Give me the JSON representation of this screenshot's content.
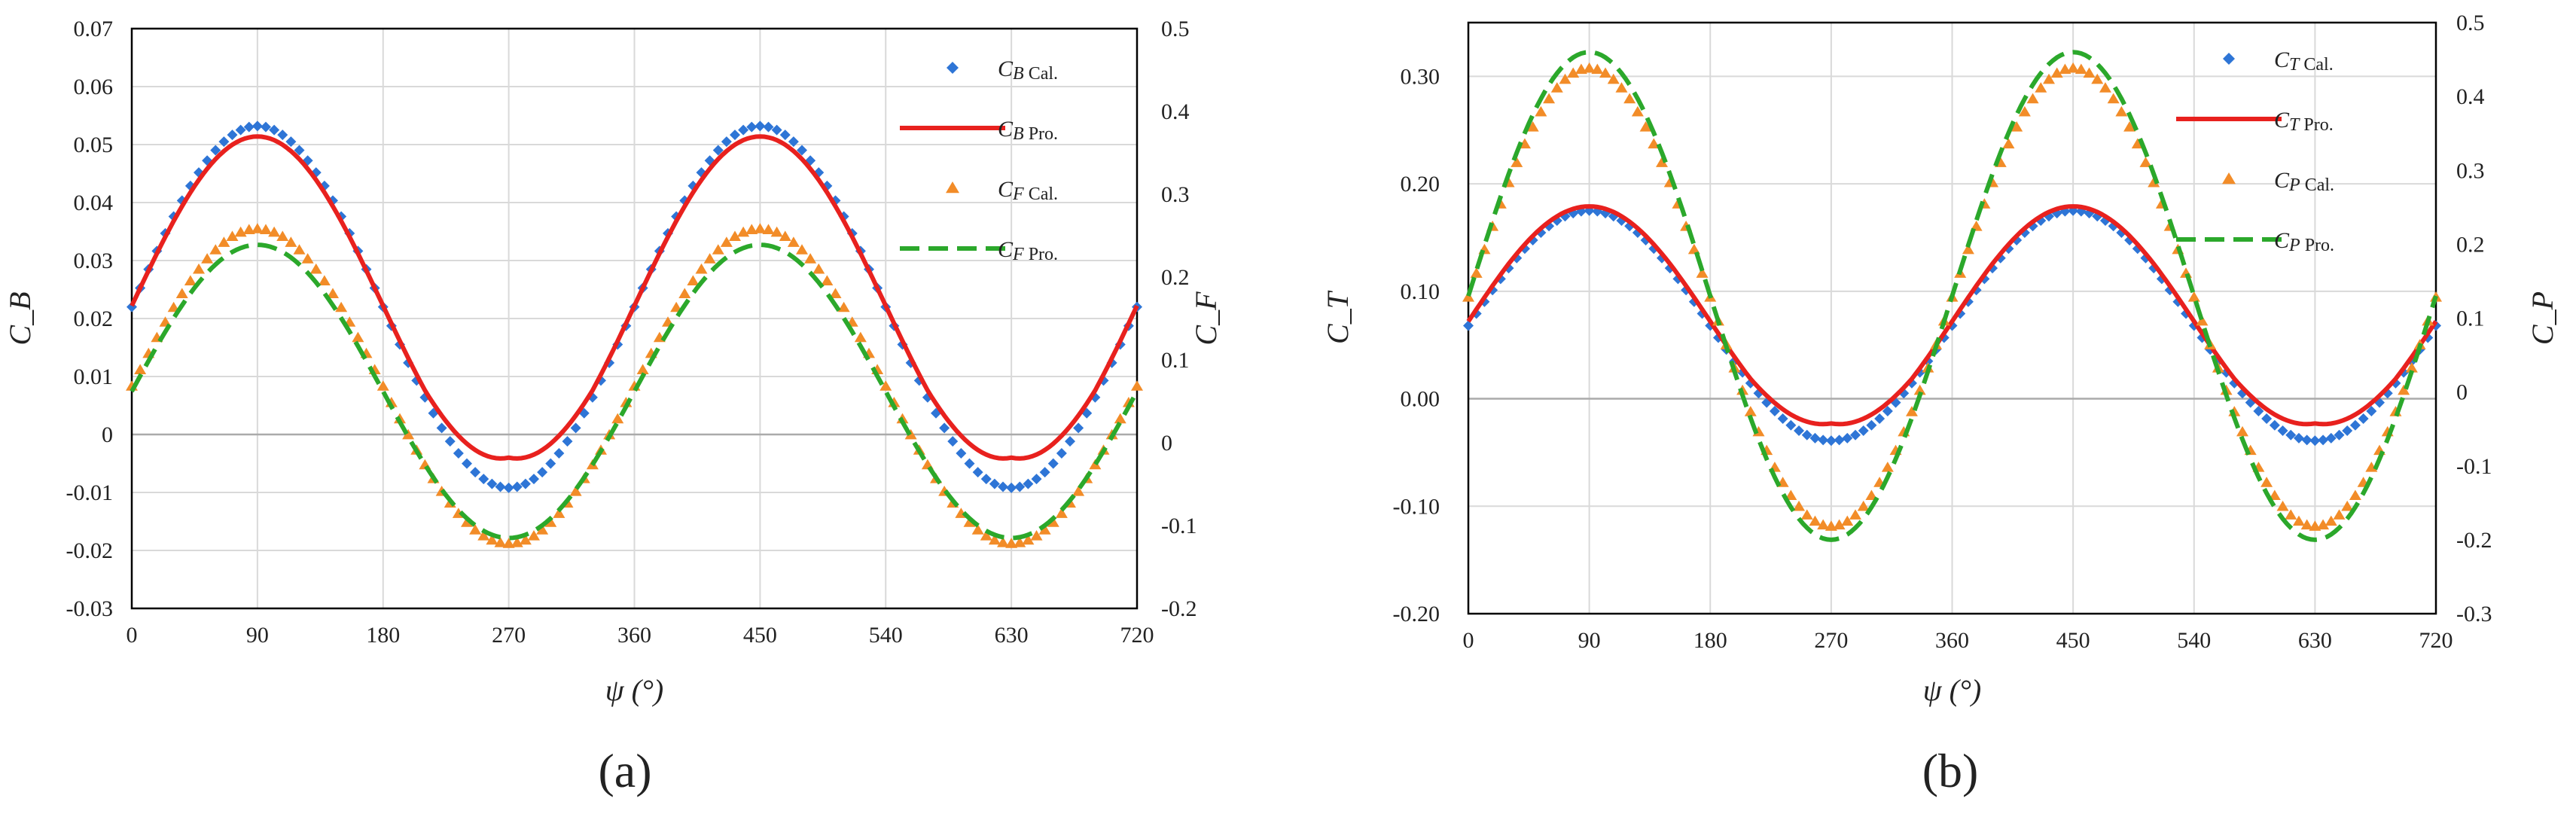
{
  "chart_data": [
    {
      "type": "line",
      "panel_label": "(a)",
      "xlabel": "ψ (°)",
      "ylabel_left": "C_B",
      "ylabel_right": "C_F",
      "x_ticks": [
        "0",
        "90",
        "180",
        "270",
        "360",
        "450",
        "540",
        "630",
        "720"
      ],
      "xlim": [
        0,
        720
      ],
      "ylim_left": [
        -0.03,
        0.07
      ],
      "ylim_right": [
        -0.2,
        0.5
      ],
      "left_ticks": [
        "-0.03",
        "-0.02",
        "-0.01",
        "0",
        "0.01",
        "0.02",
        "0.03",
        "0.04",
        "0.05",
        "0.06",
        "0.07"
      ],
      "right_ticks": [
        "-0.2",
        "-0.1",
        "0",
        "0.1",
        "0.2",
        "0.3",
        "0.4",
        "0.5"
      ],
      "grid": true,
      "legend_position": "top-right",
      "legend": [
        {
          "main": "C",
          "sub": "B",
          "suffix": "Cal.",
          "style": "diamond",
          "color": "#2E75D6"
        },
        {
          "main": "C",
          "sub": "B",
          "suffix": "Pro.",
          "style": "solid",
          "color": "#E8211E"
        },
        {
          "main": "C",
          "sub": "F",
          "suffix": "Cal.",
          "style": "triangle",
          "color": "#F28C28"
        },
        {
          "main": "C",
          "sub": "F",
          "suffix": "Pro.",
          "style": "dashed",
          "color": "#2BA82B"
        }
      ],
      "series": [
        {
          "name": "CB Cal.",
          "axis": "left",
          "style": "diamond",
          "color": "#2E75D6",
          "x0": 0,
          "x1": 720,
          "step": 6,
          "mean": 0.022,
          "amp": 0.0312,
          "amp2": 0.0,
          "phase2": 0
        },
        {
          "name": "CB Pro.",
          "axis": "left",
          "style": "solid",
          "color": "#E8211E",
          "x0": 0,
          "x1": 720,
          "step": 3,
          "mean": 0.0222,
          "amp": 0.0292,
          "amp2": 0.0,
          "phase2": 0,
          "cusp": 0.003
        },
        {
          "name": "CF Cal.",
          "axis": "right",
          "style": "triangle",
          "color": "#F28C28",
          "x0": 0,
          "x1": 720,
          "step": 6,
          "mean": 0.068,
          "amp": 0.19,
          "amp2": 0.0,
          "phase2": 0
        },
        {
          "name": "CF Pro.",
          "axis": "right",
          "style": "dashed",
          "color": "#2BA82B",
          "x0": 0,
          "x1": 720,
          "step": 3,
          "mean": 0.062,
          "amp": 0.177,
          "amp2": 0.0,
          "phase2": 0
        }
      ]
    },
    {
      "type": "line",
      "panel_label": "(b)",
      "xlabel": "ψ (°)",
      "ylabel_left": "C_T",
      "ylabel_right": "C_P",
      "x_ticks": [
        "0",
        "90",
        "180",
        "270",
        "360",
        "450",
        "540",
        "630",
        "720"
      ],
      "xlim": [
        0,
        720
      ],
      "ylim_left": [
        -0.2,
        0.35
      ],
      "ylim_right": [
        -0.3,
        0.5
      ],
      "left_ticks": [
        "-0.20",
        "-0.10",
        "0.00",
        "0.10",
        "0.20",
        "0.30"
      ],
      "left_tick_values": [
        -0.2,
        -0.1,
        0.0,
        0.1,
        0.2,
        0.3
      ],
      "right_ticks": [
        "-0.3",
        "-0.2",
        "-0.1",
        "0",
        "0.1",
        "0.2",
        "0.3",
        "0.4",
        "0.5"
      ],
      "grid": true,
      "legend_position": "top-right",
      "legend": [
        {
          "main": "C",
          "sub": "T",
          "suffix": "Cal.",
          "style": "diamond",
          "color": "#2E75D6"
        },
        {
          "main": "C",
          "sub": "T",
          "suffix": "Pro.",
          "style": "solid",
          "color": "#E8211E"
        },
        {
          "main": "C",
          "sub": "P",
          "suffix": "Cal.",
          "style": "triangle",
          "color": "#F28C28"
        },
        {
          "main": "C",
          "sub": "P",
          "suffix": "Pro.",
          "style": "dashed",
          "color": "#2BA82B"
        }
      ],
      "series": [
        {
          "name": "CT Cal.",
          "axis": "left",
          "style": "diamond",
          "color": "#2E75D6",
          "x0": 0,
          "x1": 720,
          "step": 6,
          "mean": 0.068,
          "amp": 0.107,
          "amp2": 0.0,
          "phase2": 0
        },
        {
          "name": "CT Pro.",
          "axis": "left",
          "style": "solid",
          "color": "#E8211E",
          "x0": 0,
          "x1": 720,
          "step": 3,
          "mean": 0.072,
          "amp": 0.107,
          "amp2": 0.0,
          "phase2": 0,
          "cusp": 0.012
        },
        {
          "name": "CP Cal.",
          "axis": "right",
          "style": "triangle",
          "color": "#F28C28",
          "x0": 0,
          "x1": 720,
          "step": 6,
          "mean": 0.128,
          "amp": 0.31,
          "amp2": 0.0,
          "phase2": 0
        },
        {
          "name": "CP Pro.",
          "axis": "right",
          "style": "dashed",
          "color": "#2BA82B",
          "x0": 0,
          "x1": 720,
          "step": 3,
          "mean": 0.13,
          "amp": 0.33,
          "amp2": 0.0,
          "phase2": 0
        }
      ]
    }
  ]
}
